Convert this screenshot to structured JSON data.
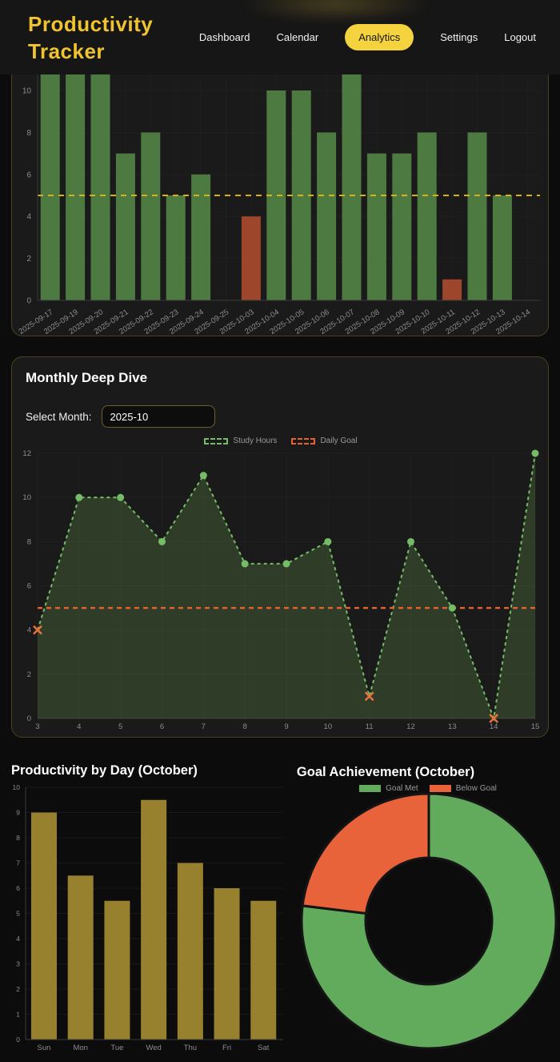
{
  "header": {
    "title_line1": "Productivity",
    "title_line2": "Tracker",
    "nav": [
      {
        "label": "Dashboard",
        "active": false
      },
      {
        "label": "Calendar",
        "active": false
      },
      {
        "label": "Analytics",
        "active": true
      },
      {
        "label": "Settings",
        "active": false
      },
      {
        "label": "Logout",
        "active": false
      }
    ]
  },
  "monthly": {
    "heading": "Monthly Deep Dive",
    "select_label": "Select Month:",
    "select_value": "2025-10"
  },
  "colors": {
    "page_bg": "#0c0c0c",
    "header_bg": "#161616",
    "card_bg": "#1a1a1a",
    "card_border": "#4a421f",
    "brand_gold": "#f0c430",
    "pill_yellow": "#f5d33f",
    "bar_green": "#4c7a41",
    "bar_orange": "#9e462b",
    "goal_gold": "#d9b117",
    "line_green": "#74bd66",
    "area_fill": "rgba(105,155,80,0.28)",
    "goal_orange": "#e8612e",
    "x_marker": "#e8743c",
    "weekday_gold": "#97802e",
    "donut_green": "#62ab5c",
    "donut_orange": "#e8623a",
    "tick_text": "#8d8d8d",
    "grid": "#202020",
    "axis": "#3a3a3a"
  },
  "chart_data": [
    {
      "id": "daily_bars",
      "type": "bar",
      "categories": [
        "2025-09-17",
        "2025-09-19",
        "2025-09-20",
        "2025-09-21",
        "2025-09-22",
        "2025-09-23",
        "2025-09-24",
        "2025-09-25",
        "2025-10-03",
        "2025-10-04",
        "2025-10-05",
        "2025-10-06",
        "2025-10-07",
        "2025-10-08",
        "2025-10-09",
        "2025-10-10",
        "2025-10-11",
        "2025-10-12",
        "2025-10-13",
        "2025-10-14"
      ],
      "values": [
        11,
        11,
        11,
        7,
        8,
        5,
        6,
        0,
        4,
        10,
        10,
        8,
        11,
        7,
        7,
        8,
        1,
        8,
        5,
        0
      ],
      "below_goal_indices": [
        8,
        16
      ],
      "goal_line_value": 5,
      "yticks": [
        0,
        2,
        4,
        6,
        8,
        10
      ],
      "ylim": [
        0,
        12
      ],
      "grid": true,
      "note_layout": "top of chart cropped behind sticky header"
    },
    {
      "id": "study_line",
      "type": "line",
      "x": [
        3,
        4,
        5,
        6,
        7,
        8,
        9,
        10,
        11,
        12,
        13,
        14,
        15
      ],
      "series": [
        {
          "name": "Study Hours",
          "values": [
            4,
            10,
            10,
            8,
            11,
            7,
            7,
            8,
            1,
            8,
            5,
            0,
            12
          ]
        }
      ],
      "goal_line": {
        "name": "Daily Goal",
        "value": 5
      },
      "below_goal_x": [
        3,
        11,
        14
      ],
      "yticks": [
        0,
        2,
        4,
        6,
        8,
        10,
        12
      ],
      "ylim": [
        0,
        12
      ],
      "grid": true,
      "legend_position": "top",
      "area_fill": true,
      "line_style": "dashed"
    },
    {
      "id": "weekday_bars",
      "type": "bar",
      "title": "Productivity by Day (October)",
      "categories": [
        "Sun",
        "Mon",
        "Tue",
        "Wed",
        "Thu",
        "Fri",
        "Sat"
      ],
      "values": [
        9,
        6.5,
        5.5,
        9.5,
        7,
        6,
        5.5
      ],
      "yticks": [
        0,
        1,
        2,
        3,
        4,
        5,
        6,
        7,
        8,
        9,
        10
      ],
      "ylim": [
        0,
        10
      ],
      "grid": false
    },
    {
      "id": "goal_donut",
      "type": "pie",
      "title": "Goal Achievement (October)",
      "labels": [
        "Goal Met",
        "Below Goal"
      ],
      "values": [
        10,
        3
      ],
      "donut_hole_ratio": 0.5,
      "legend_position": "top"
    }
  ]
}
